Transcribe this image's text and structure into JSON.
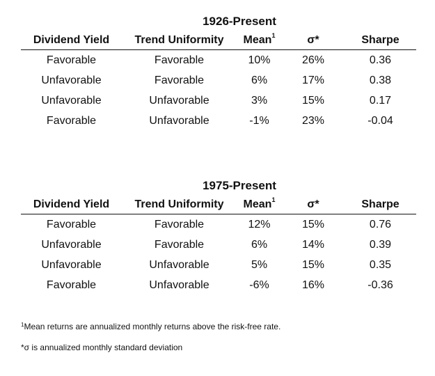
{
  "tables": [
    {
      "title": "1926-Present",
      "headers": {
        "dividend_yield": "Dividend Yield",
        "trend_uniformity": "Trend Uniformity",
        "mean": "Mean",
        "mean_sup": "1",
        "sigma": "σ*",
        "sharpe": "Sharpe"
      },
      "rows": [
        {
          "dy": "Favorable",
          "tu": "Favorable",
          "mean": "10%",
          "sigma": "26%",
          "sharpe": "0.36"
        },
        {
          "dy": "Unfavorable",
          "tu": "Favorable",
          "mean": "6%",
          "sigma": "17%",
          "sharpe": "0.38"
        },
        {
          "dy": "Unfavorable",
          "tu": "Unfavorable",
          "mean": "3%",
          "sigma": "15%",
          "sharpe": "0.17"
        },
        {
          "dy": "Favorable",
          "tu": "Unfavorable",
          "mean": "-1%",
          "sigma": "23%",
          "sharpe": "-0.04"
        }
      ]
    },
    {
      "title": "1975-Present",
      "headers": {
        "dividend_yield": "Dividend Yield",
        "trend_uniformity": "Trend Uniformity",
        "mean": "Mean",
        "mean_sup": "1",
        "sigma": "σ*",
        "sharpe": "Sharpe"
      },
      "rows": [
        {
          "dy": "Favorable",
          "tu": "Favorable",
          "mean": "12%",
          "sigma": "15%",
          "sharpe": "0.76"
        },
        {
          "dy": "Unfavorable",
          "tu": "Favorable",
          "mean": "6%",
          "sigma": "14%",
          "sharpe": "0.39"
        },
        {
          "dy": "Unfavorable",
          "tu": "Unfavorable",
          "mean": "5%",
          "sigma": "15%",
          "sharpe": "0.35"
        },
        {
          "dy": "Favorable",
          "tu": "Unfavorable",
          "mean": "-6%",
          "sigma": "16%",
          "sharpe": "-0.36"
        }
      ]
    }
  ],
  "notes": {
    "note1_marker": "1",
    "note1_text": "Mean returns are annualized monthly returns above the risk-free rate.",
    "note2_text": "*σ is annualized monthly standard deviation"
  }
}
